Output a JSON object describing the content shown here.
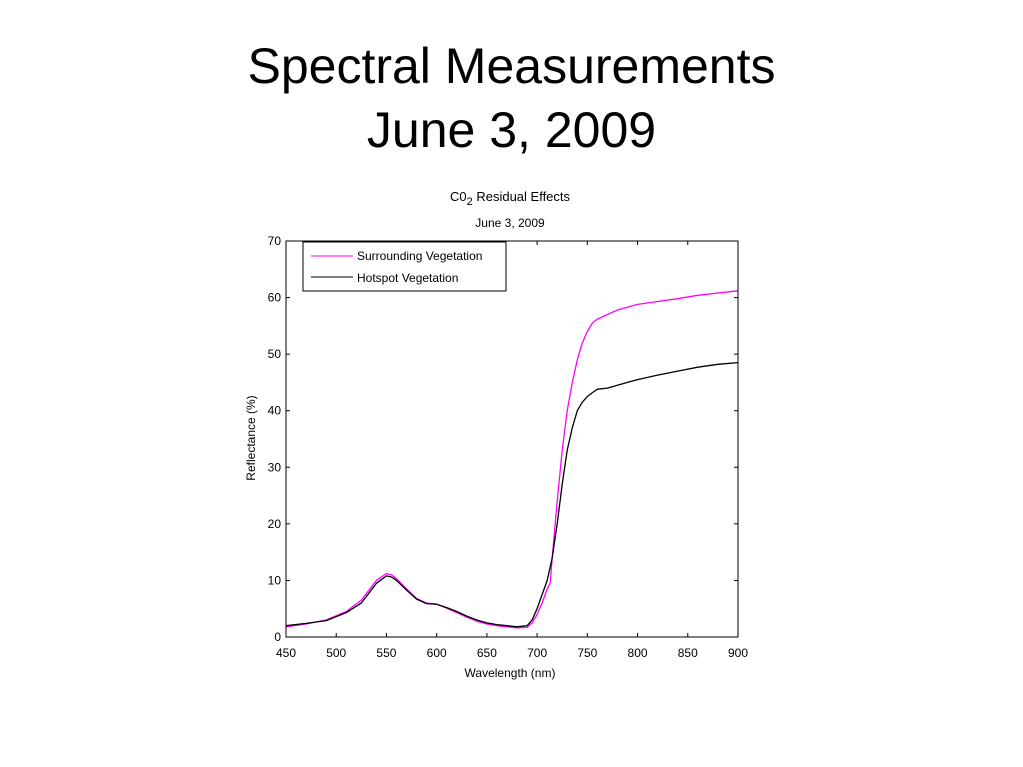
{
  "slide": {
    "title_line1": "Spectral Measurements",
    "title_line2": "June 3, 2009"
  },
  "chart_data": {
    "type": "line",
    "title": "C0",
    "title_subscript": "2",
    "title_rest": " Residual Effects",
    "subtitle": "June 3, 2009",
    "xlabel": "Wavelength (nm)",
    "ylabel": "Reflectance (%)",
    "xlim": [
      450,
      900
    ],
    "ylim": [
      0,
      70
    ],
    "xticks": [
      450,
      500,
      550,
      600,
      650,
      700,
      750,
      800,
      850,
      900
    ],
    "yticks": [
      0,
      10,
      20,
      30,
      40,
      50,
      60,
      70
    ],
    "grid": false,
    "legend_position": "top-left",
    "series": [
      {
        "name": "Surrounding Vegetation",
        "color": "#ff00ff",
        "x": [
          450,
          470,
          490,
          510,
          525,
          540,
          550,
          555,
          560,
          570,
          580,
          590,
          600,
          610,
          620,
          630,
          640,
          650,
          660,
          670,
          680,
          690,
          695,
          700,
          705,
          710,
          713,
          715,
          720,
          725,
          730,
          735,
          740,
          745,
          750,
          755,
          760,
          770,
          780,
          790,
          800,
          820,
          840,
          860,
          880,
          900
        ],
        "y": [
          1.8,
          2.3,
          3.0,
          4.5,
          6.5,
          10.0,
          11.2,
          11.0,
          10.3,
          8.5,
          6.8,
          6.0,
          5.8,
          5.1,
          4.3,
          3.5,
          2.8,
          2.3,
          2.0,
          1.8,
          1.6,
          1.7,
          2.5,
          4.0,
          6.0,
          8.5,
          9.5,
          14.0,
          24.0,
          33.0,
          40.0,
          45.0,
          49.0,
          52.0,
          54.0,
          55.5,
          56.2,
          57.0,
          57.8,
          58.3,
          58.8,
          59.3,
          59.8,
          60.4,
          60.8,
          61.2
        ]
      },
      {
        "name": "Hotspot Vegetation",
        "color": "#000000",
        "x": [
          450,
          470,
          490,
          510,
          525,
          540,
          550,
          555,
          560,
          570,
          580,
          590,
          600,
          610,
          620,
          630,
          640,
          650,
          660,
          670,
          680,
          690,
          695,
          700,
          705,
          710,
          715,
          720,
          725,
          730,
          735,
          740,
          745,
          750,
          755,
          760,
          770,
          780,
          790,
          800,
          820,
          840,
          860,
          880,
          900
        ],
        "y": [
          2.0,
          2.4,
          2.9,
          4.3,
          6.0,
          9.5,
          10.8,
          10.6,
          10.0,
          8.3,
          6.7,
          5.9,
          5.8,
          5.2,
          4.5,
          3.7,
          3.0,
          2.5,
          2.2,
          2.0,
          1.8,
          2.0,
          3.0,
          5.0,
          7.5,
          10.0,
          14.0,
          20.0,
          27.0,
          33.0,
          37.0,
          40.0,
          41.5,
          42.5,
          43.2,
          43.8,
          44.0,
          44.5,
          45.0,
          45.5,
          46.3,
          47.0,
          47.7,
          48.2,
          48.5
        ]
      }
    ]
  }
}
